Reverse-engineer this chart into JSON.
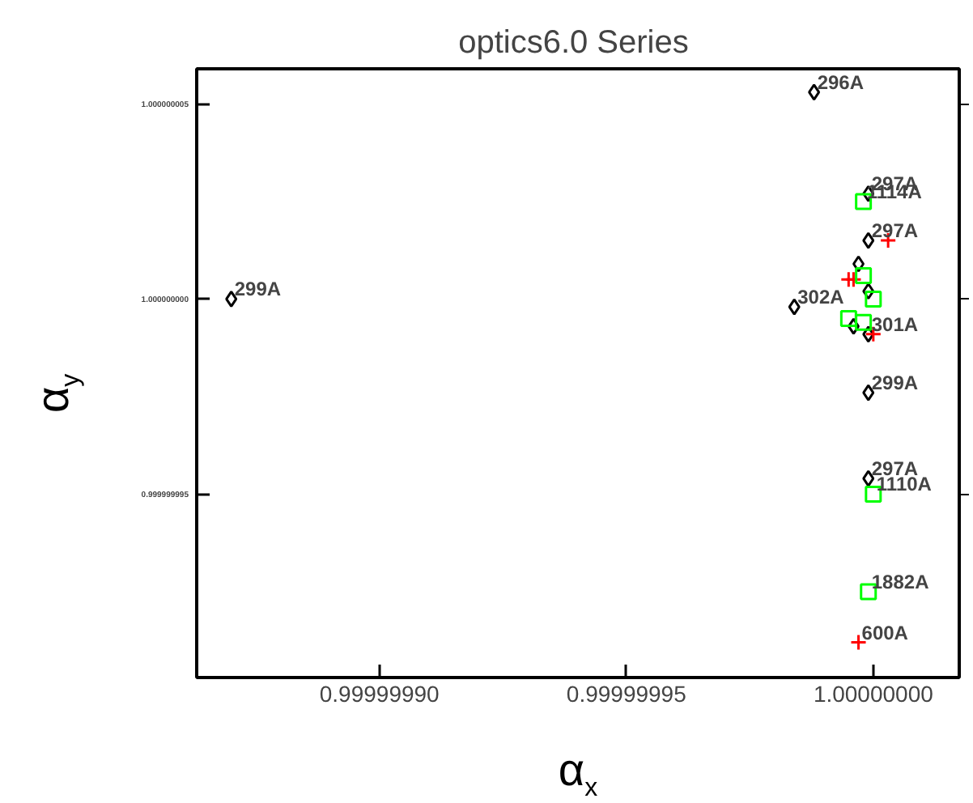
{
  "chart_data": {
    "type": "scatter",
    "title": "optics6.0  Series",
    "xlabel": "α$_{x}$",
    "ylabel": "α$_{y}$",
    "xlim": [
      0.999999863,
      1.0000000174
    ],
    "ylim": [
      0.9999999903,
      1.0000000059
    ],
    "xticks": [
      {
        "value": 0.9999999,
        "label": "0.99999990"
      },
      {
        "value": 0.99999995,
        "label": "0.99999995"
      },
      {
        "value": 1.0,
        "label": "1.00000000"
      }
    ],
    "yticks": [
      {
        "value": 0.999999995,
        "label": "0.999999995"
      },
      {
        "value": 1.0,
        "label": "1.000000000"
      },
      {
        "value": 1.000000005,
        "label": "1.000000005"
      }
    ],
    "grid": false,
    "series": [
      {
        "color": "#000000",
        "marker": "diamond",
        "x": [
          0.99999987,
          0.999999988,
          0.999999999,
          0.999999999,
          0.999999984,
          0.999999999,
          0.999999999,
          0.999999999,
          0.999999997,
          0.999999996,
          0.999999999
        ],
        "values": [
          1.0,
          1.0000000053,
          1.0000000027,
          1.0000000015,
          0.9999999998,
          0.9999999991,
          0.9999999976,
          0.9999999954,
          1.0000000009,
          0.9999999993,
          1.0000000002
        ]
      },
      {
        "color": "#ff0000",
        "marker": "cross",
        "x": [
          0.999999997,
          1.000000003,
          0.999999996,
          1.0,
          0.999999995
        ],
        "values": [
          0.9999999912,
          1.0000000015,
          1.0000000005,
          0.9999999991,
          1.0000000005
        ]
      },
      {
        "color": "#00ff00",
        "marker": "square",
        "x": [
          0.999999998,
          1.0,
          0.999999999,
          0.999999998,
          1.0,
          0.999999995,
          0.999999998
        ],
        "values": [
          1.0000000025,
          0.999999995,
          0.9999999925,
          1.0000000006,
          1.0,
          0.9999999995,
          0.9999999994
        ]
      }
    ],
    "annotations": [
      {
        "text": "299A",
        "x": 0.99999987,
        "y": 1.0
      },
      {
        "text": "296A",
        "x": 0.999999988,
        "y": 1.0000000053
      },
      {
        "text": "297A",
        "x": 0.999999999,
        "y": 1.0000000027
      },
      {
        "text": "1114A",
        "x": 0.999999998,
        "y": 1.0000000025
      },
      {
        "text": "297A",
        "x": 0.999999999,
        "y": 1.0000000015
      },
      {
        "text": "302A",
        "x": 0.999999984,
        "y": 0.9999999998
      },
      {
        "text": "301A",
        "x": 0.999999999,
        "y": 0.9999999991
      },
      {
        "text": "299A",
        "x": 0.999999999,
        "y": 0.9999999976
      },
      {
        "text": "297A",
        "x": 0.999999999,
        "y": 0.9999999954
      },
      {
        "text": "1110A",
        "x": 1.0,
        "y": 0.999999995
      },
      {
        "text": "1882A",
        "x": 0.999999999,
        "y": 0.9999999925
      },
      {
        "text": "600A",
        "x": 0.999999997,
        "y": 0.9999999912
      }
    ]
  }
}
